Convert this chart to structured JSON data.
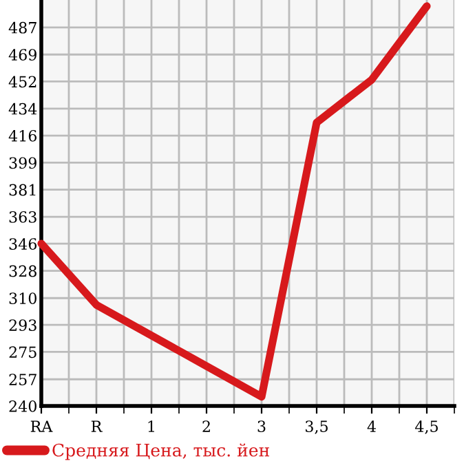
{
  "chart_data": {
    "type": "line",
    "categories": [
      "RA",
      "R",
      "1",
      "2",
      "3",
      "3,5",
      "4",
      "4,5"
    ],
    "series": [
      {
        "name": "Средняя Цена, тыс. йен",
        "color": "#d7191c",
        "values": [
          346,
          306,
          286,
          266,
          246,
          425,
          453,
          501
        ]
      }
    ],
    "ylim": [
      240,
      505
    ],
    "yticks": [
      {
        "value": 240,
        "label": "240"
      },
      {
        "value": 257.4,
        "label": "257"
      },
      {
        "value": 275.3,
        "label": "275"
      },
      {
        "value": 292.9,
        "label": "293"
      },
      {
        "value": 310.4,
        "label": "310"
      },
      {
        "value": 328.2,
        "label": "328"
      },
      {
        "value": 345.9,
        "label": "346"
      },
      {
        "value": 363.5,
        "label": "363"
      },
      {
        "value": 381.2,
        "label": "381"
      },
      {
        "value": 398.8,
        "label": "399"
      },
      {
        "value": 416.5,
        "label": "416"
      },
      {
        "value": 434.1,
        "label": "434"
      },
      {
        "value": 451.8,
        "label": "452"
      },
      {
        "value": 469.4,
        "label": "469"
      },
      {
        "value": 487.1,
        "label": "487"
      }
    ],
    "grid": true,
    "legend": "bottom",
    "marker": "none",
    "line_style": "solid"
  }
}
